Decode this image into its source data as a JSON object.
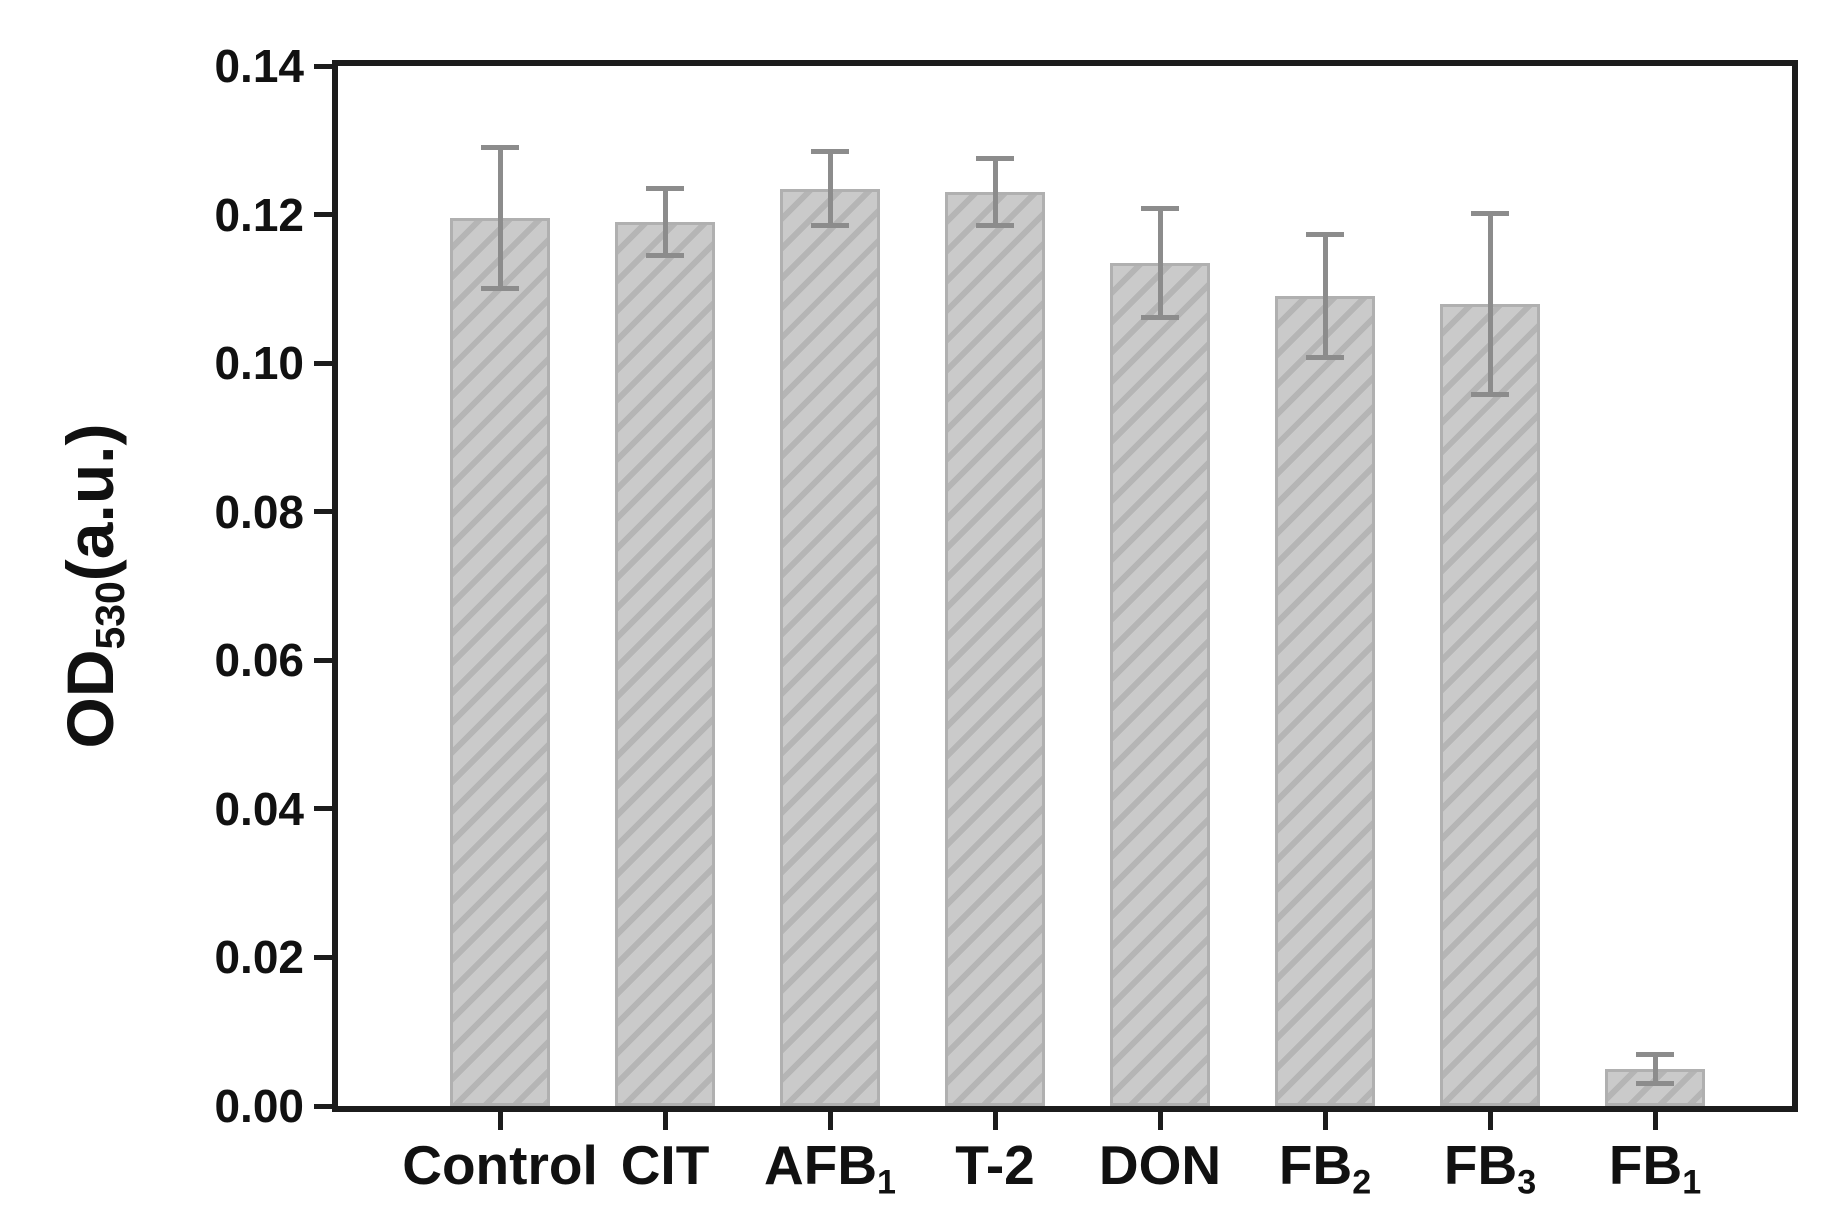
{
  "figure": {
    "background": "#ffffff"
  },
  "chart_data": {
    "type": "bar",
    "title": "",
    "xlabel": "",
    "ylabel": {
      "base": "OD",
      "sub": "530",
      "unit": "(a.u.)",
      "display": "OD530(a.u.)"
    },
    "ylim": [
      0,
      0.14
    ],
    "ytick_step": 0.02,
    "ytick_labels": [
      "0.00",
      "0.02",
      "0.04",
      "0.06",
      "0.08",
      "0.10",
      "0.12",
      "0.14"
    ],
    "grid": false,
    "legend": null,
    "categories": [
      {
        "base": "Control",
        "sub": ""
      },
      {
        "base": "CIT",
        "sub": ""
      },
      {
        "base": "AFB",
        "sub": "1"
      },
      {
        "base": "T-2",
        "sub": ""
      },
      {
        "base": "DON",
        "sub": ""
      },
      {
        "base": "FB",
        "sub": "2"
      },
      {
        "base": "FB",
        "sub": "3"
      },
      {
        "base": "FB",
        "sub": "1"
      }
    ],
    "values": [
      0.1195,
      0.119,
      0.1235,
      0.123,
      0.1135,
      0.109,
      0.108,
      0.005
    ],
    "errors": [
      0.0095,
      0.0045,
      0.005,
      0.0045,
      0.0073,
      0.0083,
      0.0122,
      0.002
    ],
    "colors": {
      "bar_fill": "#cacaca",
      "bar_hatch": "#b5b5b5",
      "bar_edge": "#b0b0b0",
      "error_bar": "#8c8c8c",
      "axis": "#1c1c1c",
      "text": "#111111"
    },
    "bar_hatch_style": "diagonal-forward-slash"
  }
}
